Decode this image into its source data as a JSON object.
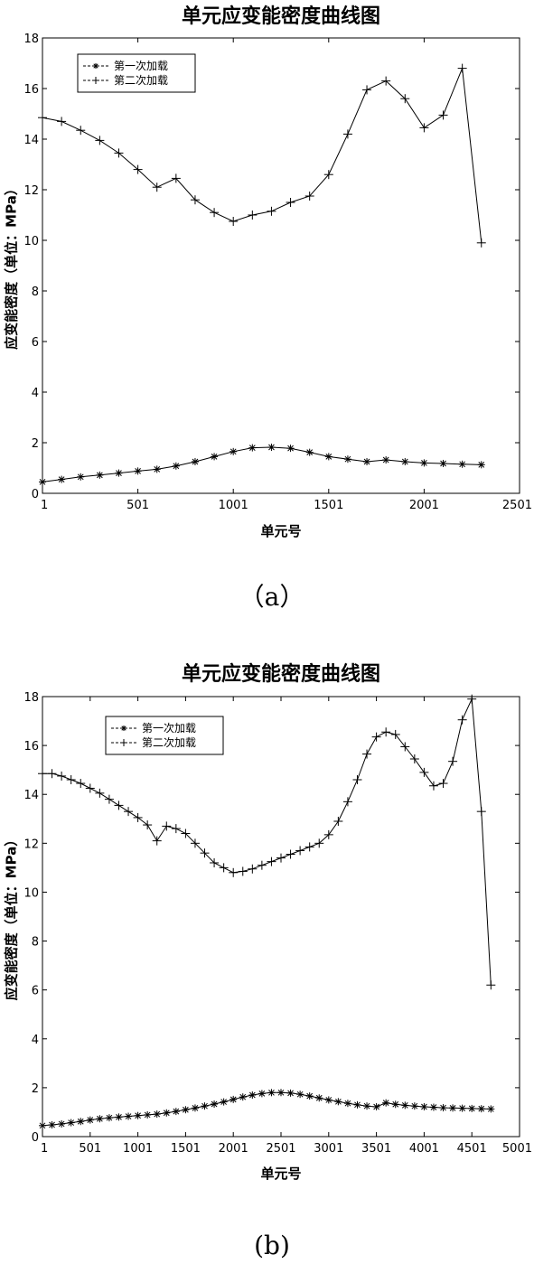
{
  "chart_data": [
    {
      "type": "line",
      "title": "单元应变能密度曲线图",
      "xlabel": "单元号",
      "ylabel": "应变能密度（单位：MPa）",
      "xlim": [
        1,
        2501
      ],
      "ylim": [
        0,
        18
      ],
      "xticks": [
        1,
        501,
        1001,
        1501,
        2001,
        2501
      ],
      "yticks": [
        0,
        2,
        4,
        6,
        8,
        10,
        12,
        14,
        16,
        18
      ],
      "legend_position": "top-left",
      "caption": "（a）",
      "series": [
        {
          "name": "第一次加载",
          "marker": "*",
          "x": [
            1,
            101,
            201,
            301,
            401,
            501,
            601,
            701,
            801,
            901,
            1001,
            1101,
            1201,
            1301,
            1401,
            1501,
            1601,
            1701,
            1801,
            1901,
            2001,
            2101,
            2201,
            2301
          ],
          "y": [
            0.45,
            0.55,
            0.65,
            0.72,
            0.8,
            0.88,
            0.95,
            1.08,
            1.25,
            1.45,
            1.65,
            1.8,
            1.82,
            1.78,
            1.62,
            1.45,
            1.35,
            1.25,
            1.32,
            1.25,
            1.2,
            1.18,
            1.15,
            1.13
          ]
        },
        {
          "name": "第二次加载",
          "marker": "+",
          "x": [
            1,
            101,
            201,
            301,
            401,
            501,
            601,
            701,
            801,
            901,
            1001,
            1101,
            1201,
            1301,
            1401,
            1501,
            1601,
            1701,
            1801,
            1901,
            2001,
            2101,
            2201,
            2301
          ],
          "y": [
            14.85,
            14.7,
            14.35,
            13.95,
            13.45,
            12.8,
            12.1,
            12.45,
            11.6,
            11.1,
            10.75,
            11.0,
            11.15,
            11.5,
            11.75,
            12.6,
            14.2,
            15.95,
            16.3,
            15.6,
            14.45,
            14.95,
            16.8,
            9.9
          ]
        }
      ]
    },
    {
      "type": "line",
      "title": "单元应变能密度曲线图",
      "xlabel": "单元号",
      "ylabel": "应变能密度（单位：MPa）",
      "xlim": [
        1,
        5001
      ],
      "ylim": [
        0,
        18
      ],
      "xticks": [
        1,
        501,
        1001,
        1501,
        2001,
        2501,
        3001,
        3501,
        4001,
        4501,
        5001
      ],
      "yticks": [
        0,
        2,
        4,
        6,
        8,
        10,
        12,
        14,
        16,
        18
      ],
      "legend_position": "top-left",
      "caption": "(b)",
      "series": [
        {
          "name": "第一次加载",
          "marker": "*",
          "x": [
            1,
            101,
            201,
            301,
            401,
            501,
            601,
            701,
            801,
            901,
            1001,
            1101,
            1201,
            1301,
            1401,
            1501,
            1601,
            1701,
            1801,
            1901,
            2001,
            2101,
            2201,
            2301,
            2401,
            2501,
            2601,
            2701,
            2801,
            2901,
            3001,
            3101,
            3201,
            3301,
            3401,
            3501,
            3601,
            3701,
            3801,
            3901,
            4001,
            4101,
            4201,
            4301,
            4401,
            4501,
            4601,
            4701
          ],
          "y": [
            0.45,
            0.48,
            0.52,
            0.57,
            0.62,
            0.68,
            0.73,
            0.77,
            0.8,
            0.83,
            0.86,
            0.89,
            0.92,
            0.97,
            1.03,
            1.1,
            1.17,
            1.25,
            1.33,
            1.42,
            1.52,
            1.62,
            1.7,
            1.76,
            1.8,
            1.8,
            1.78,
            1.73,
            1.66,
            1.58,
            1.5,
            1.43,
            1.36,
            1.3,
            1.25,
            1.22,
            1.38,
            1.32,
            1.28,
            1.25,
            1.22,
            1.2,
            1.18,
            1.17,
            1.16,
            1.15,
            1.14,
            1.13
          ]
        },
        {
          "name": "第二次加载",
          "marker": "+",
          "x": [
            1,
            101,
            201,
            301,
            401,
            501,
            601,
            701,
            801,
            901,
            1001,
            1101,
            1201,
            1301,
            1401,
            1501,
            1601,
            1701,
            1801,
            1901,
            2001,
            2101,
            2201,
            2301,
            2401,
            2501,
            2601,
            2701,
            2801,
            2901,
            3001,
            3101,
            3201,
            3301,
            3401,
            3501,
            3601,
            3701,
            3801,
            3901,
            4001,
            4101,
            4201,
            4301,
            4401,
            4501,
            4601,
            4701
          ],
          "y": [
            14.85,
            14.85,
            14.75,
            14.6,
            14.45,
            14.25,
            14.05,
            13.8,
            13.55,
            13.3,
            13.05,
            12.75,
            12.1,
            12.7,
            12.6,
            12.4,
            12.0,
            11.6,
            11.2,
            11.0,
            10.8,
            10.85,
            10.95,
            11.1,
            11.25,
            11.4,
            11.55,
            11.7,
            11.85,
            12.0,
            12.35,
            12.9,
            13.7,
            14.6,
            15.65,
            16.35,
            16.55,
            16.45,
            15.95,
            15.45,
            14.9,
            14.35,
            14.45,
            15.35,
            17.05,
            17.9,
            13.3,
            6.2
          ]
        }
      ]
    }
  ]
}
